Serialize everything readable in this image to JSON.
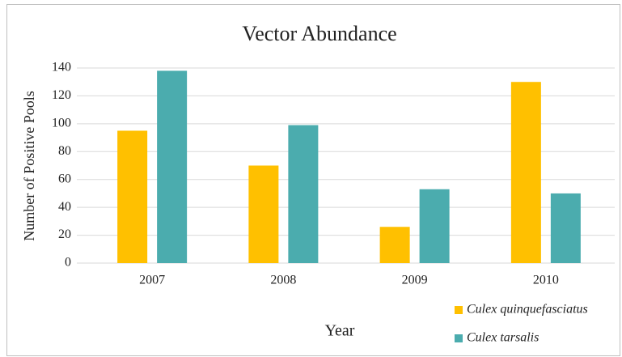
{
  "chart_data": {
    "type": "bar",
    "title": "Vector Abundance",
    "x_label": "Year",
    "y_label": "Number of Positive Pools",
    "categories": [
      "2007",
      "2008",
      "2009",
      "2010"
    ],
    "series": [
      {
        "name": "Culex quinquefasciatus",
        "color": "#ffc000",
        "values": [
          95,
          70,
          26,
          130
        ]
      },
      {
        "name": "Culex tarsalis",
        "color": "#4bacae",
        "values": [
          138,
          99,
          53,
          50
        ]
      }
    ],
    "ylim": [
      0,
      140
    ],
    "yticks": [
      0,
      20,
      40,
      60,
      80,
      100,
      120,
      140
    ],
    "grid": true,
    "legend": "bottom-right"
  }
}
